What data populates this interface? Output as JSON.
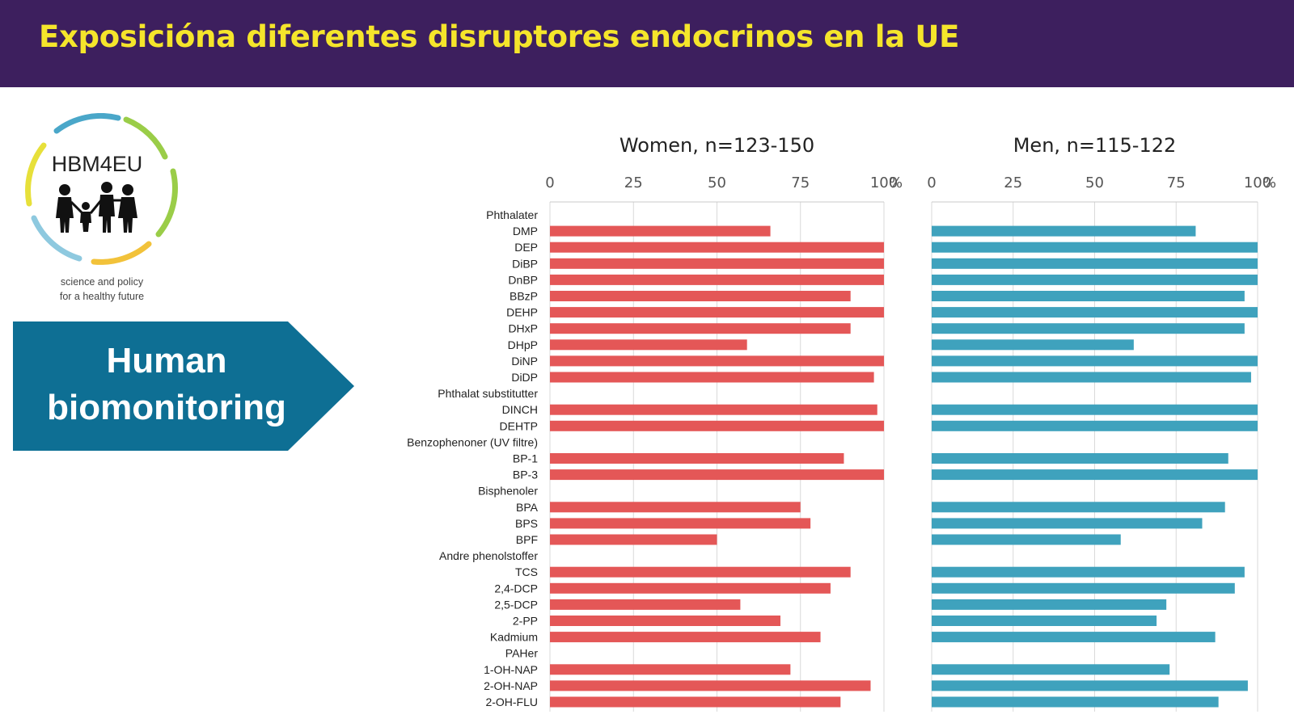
{
  "header": {
    "title": "Exposicióna diferentes disruptores endocrinos en la UE"
  },
  "logo": {
    "name": "HBM4EU",
    "tagline_line1": "science and policy",
    "tagline_line2": "for a healthy future"
  },
  "banner": {
    "line1": "Human",
    "line2": "biomonitoring",
    "color": "#0e6f94"
  },
  "chart_data": {
    "type": "bar",
    "orientation": "horizontal",
    "xlim": [
      0,
      100
    ],
    "ticks": [
      "0",
      "25",
      "50",
      "75",
      "100"
    ],
    "unit": "%",
    "grid": true,
    "categories": [
      "Phthalater",
      "DMP",
      "DEP",
      "DiBP",
      "DnBP",
      "BBzP",
      "DEHP",
      "DHxP",
      "DHpP",
      "DiNP",
      "DiDP",
      "Phthalat substitutter",
      "DINCH",
      "DEHTP",
      "Benzophenoner (UV filtre)",
      "BP-1",
      "BP-3",
      "Bisphenoler",
      "BPA",
      "BPS",
      "BPF",
      "Andre phenolstoffer",
      "TCS",
      "2,4-DCP",
      "2,5-DCP",
      "2-PP",
      "Kadmium",
      "PAHer",
      "1-OH-NAP",
      "2-OH-NAP",
      "2-OH-FLU"
    ],
    "series": [
      {
        "name": "Women, n=123-150",
        "color": "#e45757",
        "values": [
          null,
          66,
          100,
          100,
          100,
          90,
          100,
          90,
          59,
          100,
          97,
          null,
          98,
          100,
          null,
          88,
          100,
          null,
          75,
          78,
          50,
          null,
          90,
          84,
          57,
          69,
          81,
          null,
          72,
          96,
          87
        ]
      },
      {
        "name": "Men, n=115-122",
        "color": "#3fa2bd",
        "values": [
          null,
          81,
          100,
          100,
          100,
          96,
          100,
          96,
          62,
          100,
          98,
          null,
          100,
          100,
          null,
          91,
          100,
          null,
          90,
          83,
          58,
          null,
          96,
          93,
          72,
          69,
          87,
          null,
          73,
          97,
          88
        ]
      }
    ]
  }
}
